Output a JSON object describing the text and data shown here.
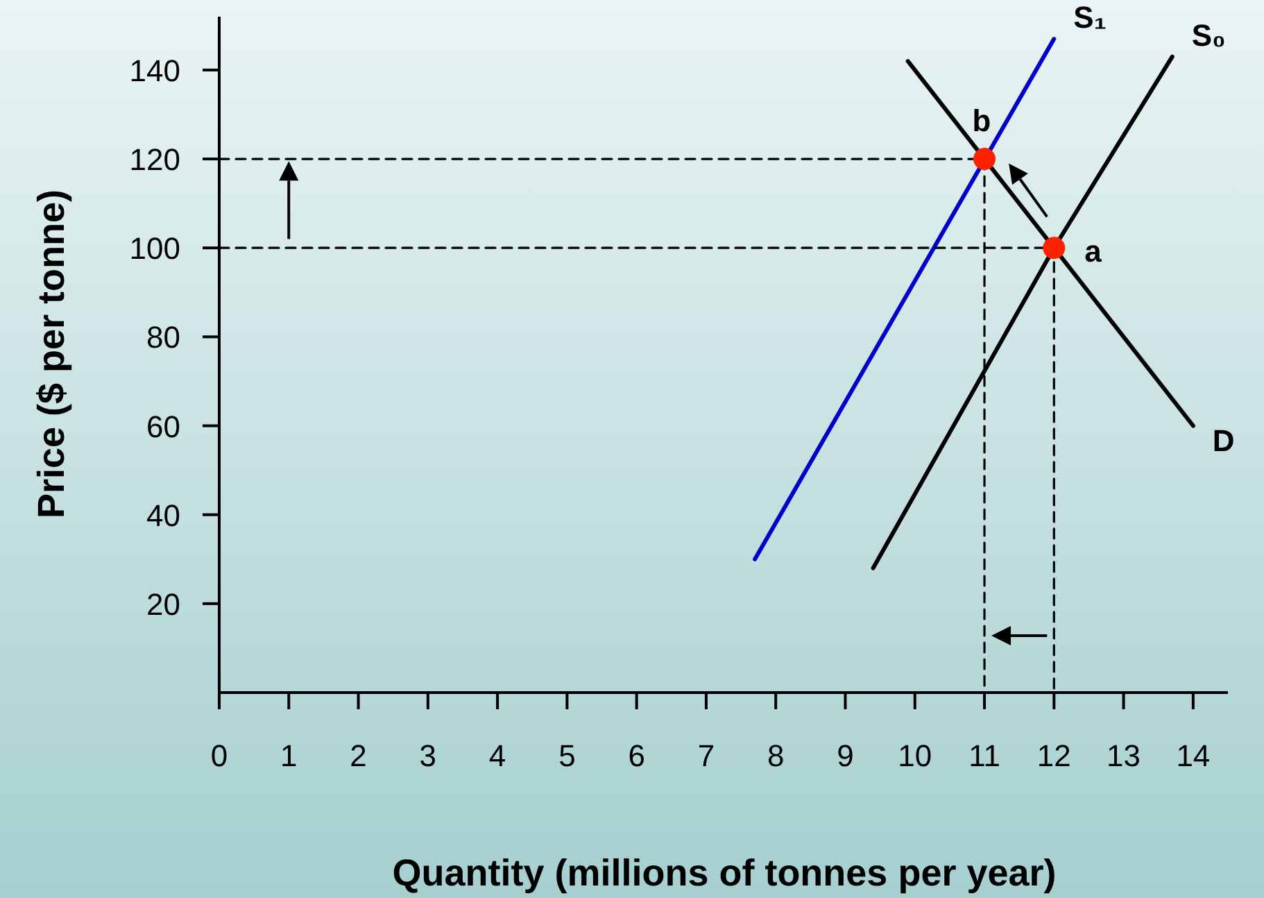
{
  "chart_data": {
    "type": "line",
    "xlabel": "Quantity (millions of tonnes per year)",
    "ylabel": "Price ($ per tonne)",
    "xlim": [
      0,
      14.5
    ],
    "ylim": [
      0,
      152
    ],
    "xticks": [
      0,
      1,
      2,
      3,
      4,
      5,
      6,
      7,
      8,
      9,
      10,
      11,
      12,
      13,
      14
    ],
    "yticks": [
      20,
      40,
      60,
      80,
      100,
      120,
      140
    ],
    "grid": false,
    "marker": "none",
    "line_style": "solid",
    "series": [
      {
        "name": "S₁",
        "color": "#0000cc",
        "x": [
          7.7,
          12
        ],
        "values": [
          30,
          147
        ]
      },
      {
        "name": "S₀",
        "color": "#000000",
        "x": [
          9.4,
          12,
          13.7
        ],
        "values": [
          28,
          100,
          143
        ]
      },
      {
        "name": "D",
        "color": "#000000",
        "x": [
          9.9,
          14
        ],
        "values": [
          142,
          60
        ]
      },
      {
        "type": "line",
        "color": "#000000",
        "line_style": "dashed",
        "x": [
          0,
          11,
          11
        ],
        "values": [
          120,
          120,
          0
        ]
      },
      {
        "type": "line",
        "color": "#000000",
        "line_style": "dashed",
        "x": [
          0,
          12,
          12
        ],
        "values": [
          100,
          100,
          0
        ]
      },
      {
        "type": "scatter",
        "marker": "circle",
        "color": "#ff2200",
        "x": [
          11,
          12
        ],
        "values": [
          120,
          100
        ]
      }
    ],
    "annotations": [
      {
        "text": "b",
        "x": 11,
        "y": 120
      },
      {
        "text": "a",
        "x": 12,
        "y": 100
      }
    ]
  }
}
